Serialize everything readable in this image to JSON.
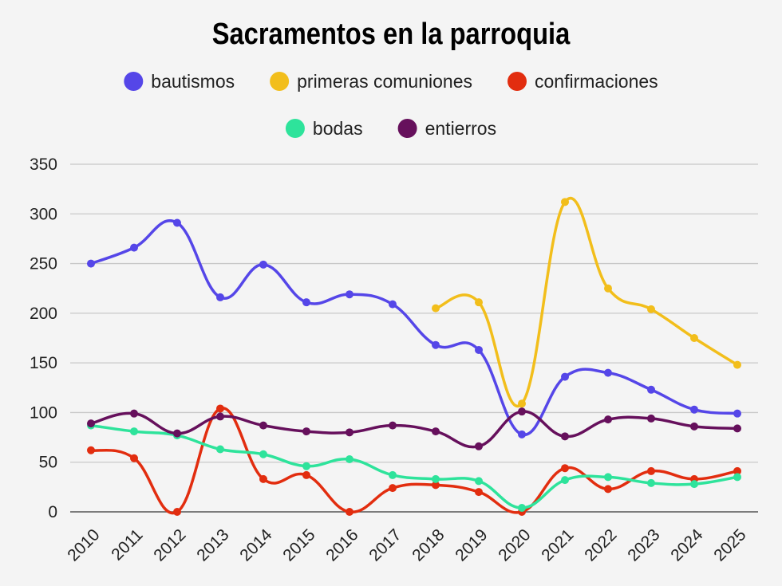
{
  "chart_data": {
    "type": "line",
    "title": "Sacramentos en la parroquia",
    "xlabel": "",
    "ylabel": "",
    "ylim": [
      0,
      350
    ],
    "yticks": [
      0,
      50,
      100,
      150,
      200,
      250,
      300,
      350
    ],
    "categories": [
      "2010",
      "2011",
      "2012",
      "2013",
      "2014",
      "2015",
      "2016",
      "2017",
      "2018",
      "2019",
      "2020",
      "2021",
      "2022",
      "2023",
      "2024",
      "2025"
    ],
    "legend_position": "top-center",
    "grid": true,
    "series": [
      {
        "name": "bautismos",
        "color": "#5546e8",
        "values": [
          250,
          266,
          291,
          216,
          249,
          211,
          219,
          209,
          168,
          163,
          78,
          136,
          140,
          123,
          103,
          99
        ]
      },
      {
        "name": "primeras comuniones",
        "color": "#f2be1b",
        "values": [
          null,
          null,
          null,
          null,
          null,
          null,
          null,
          null,
          205,
          211,
          109,
          312,
          225,
          204,
          175,
          148
        ]
      },
      {
        "name": "confirmaciones",
        "color": "#e22d0f",
        "values": [
          62,
          54,
          0,
          104,
          33,
          37,
          0,
          24,
          27,
          20,
          0,
          44,
          23,
          41,
          33,
          41
        ]
      },
      {
        "name": "bodas",
        "color": "#2ee39b",
        "values": [
          87,
          81,
          77,
          63,
          58,
          46,
          53,
          37,
          33,
          31,
          4,
          32,
          35,
          29,
          28,
          35
        ]
      },
      {
        "name": "entierros",
        "color": "#66105c",
        "values": [
          89,
          99,
          79,
          96,
          87,
          81,
          80,
          87,
          81,
          66,
          101,
          76,
          93,
          94,
          86,
          84
        ]
      }
    ]
  }
}
